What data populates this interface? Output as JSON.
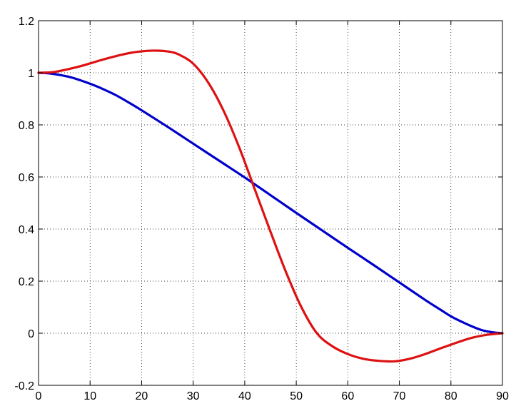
{
  "chart_data": {
    "type": "line",
    "title": "",
    "xlabel": "",
    "ylabel": "",
    "xlim": [
      0,
      90
    ],
    "ylim": [
      -0.2,
      1.2
    ],
    "xticks": [
      0,
      10,
      20,
      30,
      40,
      50,
      60,
      70,
      80,
      90
    ],
    "yticks": [
      -0.2,
      0,
      0.2,
      0.4,
      0.6,
      0.8,
      1,
      1.2
    ],
    "xtick_labels": [
      "0",
      "10",
      "20",
      "30",
      "40",
      "50",
      "60",
      "70",
      "80",
      "90"
    ],
    "ytick_labels": [
      "-0.2",
      "0",
      "0.2",
      "0.4",
      "0.6",
      "0.8",
      "1",
      "1.2"
    ],
    "grid": true,
    "legend": "none",
    "series": [
      {
        "color": "#0000cc",
        "x": [
          0,
          2,
          4,
          6,
          8,
          10,
          12,
          15,
          18,
          20,
          25,
          30,
          35,
          40,
          45,
          50,
          55,
          60,
          65,
          70,
          75,
          78,
          80,
          82,
          84,
          86,
          88,
          90
        ],
        "y": [
          1.0,
          0.998,
          0.992,
          0.984,
          0.972,
          0.958,
          0.942,
          0.914,
          0.88,
          0.856,
          0.793,
          0.728,
          0.663,
          0.598,
          0.53,
          0.462,
          0.395,
          0.328,
          0.262,
          0.195,
          0.128,
          0.09,
          0.065,
          0.045,
          0.027,
          0.012,
          0.004,
          0.0
        ]
      },
      {
        "color": "#dd1111",
        "x": [
          0,
          3,
          6,
          9,
          12,
          15,
          18,
          21,
          23,
          25,
          27,
          30,
          33,
          36,
          39,
          42,
          45,
          48,
          51,
          54,
          57,
          60,
          63,
          66,
          69,
          72,
          75,
          78,
          81,
          84,
          87,
          90
        ],
        "y": [
          1.0,
          1.003,
          1.015,
          1.03,
          1.048,
          1.064,
          1.077,
          1.084,
          1.085,
          1.082,
          1.072,
          1.035,
          0.96,
          0.85,
          0.71,
          0.55,
          0.39,
          0.235,
          0.1,
          0.0,
          -0.05,
          -0.08,
          -0.098,
          -0.106,
          -0.108,
          -0.098,
          -0.08,
          -0.058,
          -0.037,
          -0.018,
          -0.006,
          0.0
        ]
      }
    ]
  }
}
